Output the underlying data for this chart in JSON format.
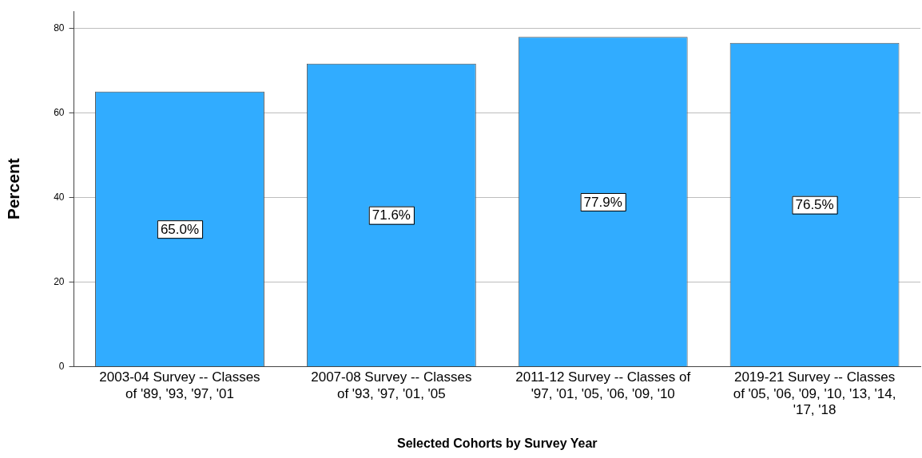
{
  "chart_data": {
    "type": "bar",
    "xlabel": "Selected Cohorts by Survey Year",
    "ylabel": "Percent",
    "categories": [
      "2003-04 Survey -- Classes of '89, '93, '97, '01",
      "2007-08 Survey -- Classes of '93, '97, '01, '05",
      "2011-12 Survey -- Classes of '97, '01, '05, '06, '09, '10",
      "2019-21 Survey -- Classes of '05, '06, '09, '10, '13, '14, '17, '18"
    ],
    "values": [
      65.0,
      71.6,
      77.9,
      76.5
    ],
    "value_labels": [
      "65.0%",
      "71.6%",
      "77.9%",
      "76.5%"
    ],
    "color": "#31acff",
    "ylim": [
      0,
      84
    ],
    "yticks": [
      0,
      20,
      40,
      60,
      80
    ],
    "grid": "y"
  }
}
